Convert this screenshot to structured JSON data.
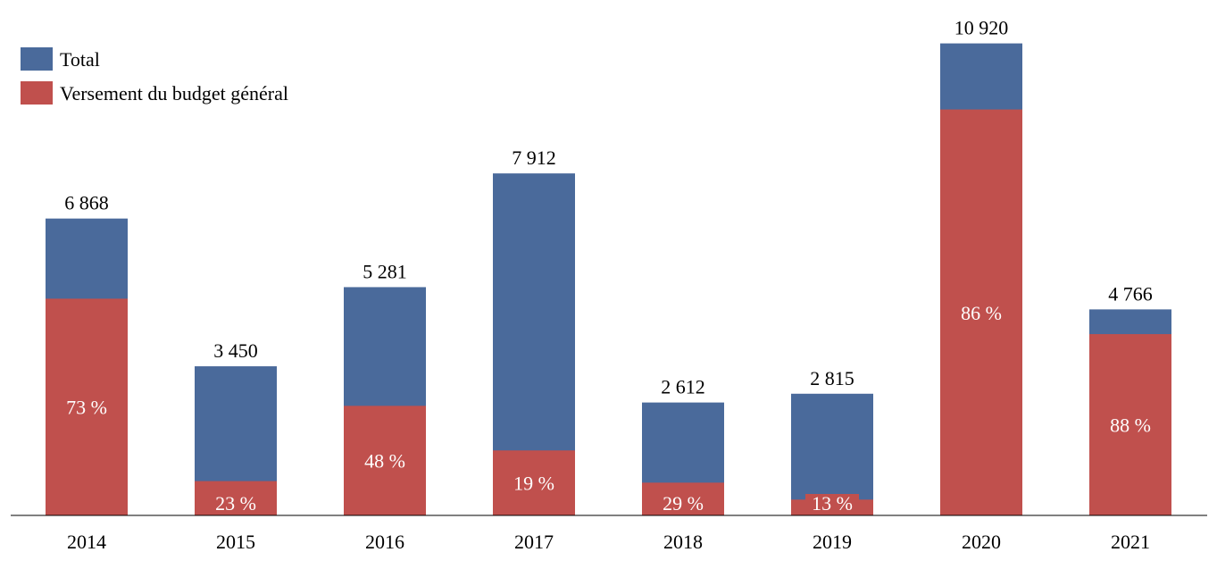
{
  "chart_data": {
    "type": "bar",
    "stacked_overlay": true,
    "categories": [
      "2014",
      "2015",
      "2016",
      "2017",
      "2018",
      "2019",
      "2020",
      "2021"
    ],
    "series": [
      {
        "name": "Total",
        "color": "#4A6A9B",
        "values": [
          6868,
          3450,
          5281,
          7912,
          2612,
          2815,
          10920,
          4766
        ],
        "value_labels": [
          "6 868",
          "3 450",
          "5 281",
          "7 912",
          "2 612",
          "2 815",
          "10 920",
          "4 766"
        ]
      },
      {
        "name": "Versement du budget général",
        "color": "#C0504D",
        "share_of_total": [
          0.73,
          0.23,
          0.48,
          0.19,
          0.29,
          0.13,
          0.86,
          0.88
        ],
        "share_labels": [
          "73 %",
          "23 %",
          "48 %",
          "19 %",
          "29 %",
          "13 %",
          "86 %",
          "88 %"
        ]
      }
    ],
    "ylim": [
      0,
      11800
    ],
    "grid": false,
    "legend_position": "top-left"
  }
}
